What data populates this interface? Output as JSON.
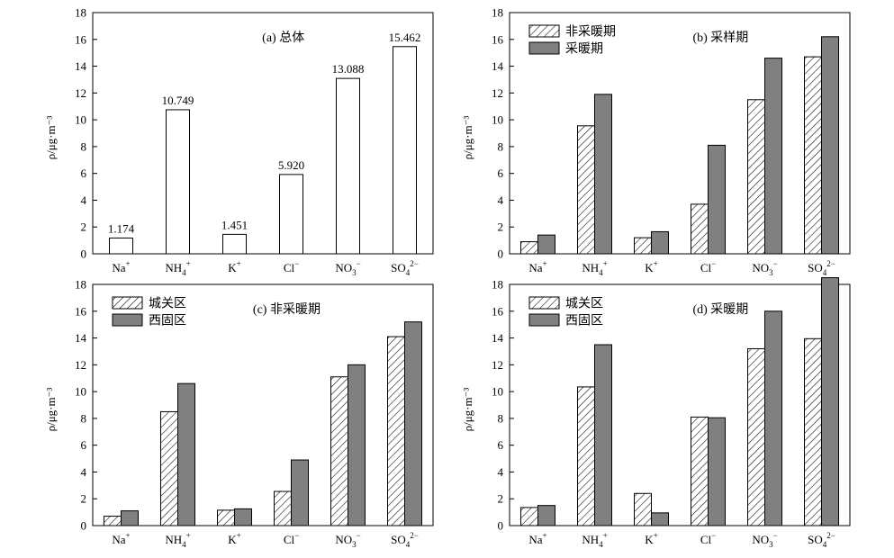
{
  "chart_data": [
    {
      "id": "a",
      "type": "bar",
      "title": "(a) 总体",
      "ylabel": "ρ/μg·m⁻³",
      "ylim": [
        0,
        18
      ],
      "yticks": [
        "0",
        "2",
        "4",
        "6",
        "8",
        "10",
        "12",
        "14",
        "16",
        "18"
      ],
      "categories": [
        {
          "base": "Na",
          "sub": "",
          "sup": "+"
        },
        {
          "base": "NH",
          "sub": "4",
          "sup": "+"
        },
        {
          "base": "K",
          "sub": "",
          "sup": "+"
        },
        {
          "base": "Cl",
          "sub": "",
          "sup": "−"
        },
        {
          "base": "NO",
          "sub": "3",
          "sup": "−"
        },
        {
          "base": "SO",
          "sub": "4",
          "sup": "2−"
        }
      ],
      "legend_position": "none",
      "series": [
        {
          "name": "",
          "style": "white",
          "values": [
            1.174,
            10.749,
            1.451,
            5.92,
            13.088,
            15.462
          ]
        }
      ],
      "data_labels": [
        "1.174",
        "10.749",
        "1.451",
        "5.920",
        "13.088",
        "15.462"
      ]
    },
    {
      "id": "b",
      "type": "bar",
      "title": "(b) 采样期",
      "ylabel": "ρ/μg·m⁻³",
      "ylim": [
        0,
        18
      ],
      "yticks": [
        "0",
        "2",
        "4",
        "6",
        "8",
        "10",
        "12",
        "14",
        "16",
        "18"
      ],
      "categories": [
        {
          "base": "Na",
          "sub": "",
          "sup": "+"
        },
        {
          "base": "NH",
          "sub": "4",
          "sup": "+"
        },
        {
          "base": "K",
          "sub": "",
          "sup": "+"
        },
        {
          "base": "Cl",
          "sub": "",
          "sup": "−"
        },
        {
          "base": "NO",
          "sub": "3",
          "sup": "−"
        },
        {
          "base": "SO",
          "sub": "4",
          "sup": "2−"
        }
      ],
      "legend_position": "top-left",
      "series": [
        {
          "name": "非采暖期",
          "style": "hatch",
          "values": [
            0.9,
            9.55,
            1.2,
            3.7,
            11.5,
            14.7
          ]
        },
        {
          "name": "采暖期",
          "style": "gray",
          "values": [
            1.4,
            11.9,
            1.65,
            8.1,
            14.6,
            16.2
          ]
        }
      ]
    },
    {
      "id": "c",
      "type": "bar",
      "title": "(c) 非采暖期",
      "ylabel": "ρ/μg·m⁻³",
      "ylim": [
        0,
        18
      ],
      "yticks": [
        "0",
        "2",
        "4",
        "6",
        "8",
        "10",
        "12",
        "14",
        "16",
        "18"
      ],
      "categories": [
        {
          "base": "Na",
          "sub": "",
          "sup": "+"
        },
        {
          "base": "NH",
          "sub": "4",
          "sup": "+"
        },
        {
          "base": "K",
          "sub": "",
          "sup": "+"
        },
        {
          "base": "Cl",
          "sub": "",
          "sup": "−"
        },
        {
          "base": "NO",
          "sub": "3",
          "sup": "−"
        },
        {
          "base": "SO",
          "sub": "4",
          "sup": "2−"
        }
      ],
      "legend_position": "top-left",
      "series": [
        {
          "name": "城关区",
          "style": "hatch",
          "values": [
            0.7,
            8.5,
            1.15,
            2.55,
            11.1,
            14.1
          ]
        },
        {
          "name": "西固区",
          "style": "gray",
          "values": [
            1.1,
            10.6,
            1.25,
            4.9,
            12.0,
            15.2
          ]
        }
      ]
    },
    {
      "id": "d",
      "type": "bar",
      "title": "(d) 采暖期",
      "ylabel": "ρ/μg·m⁻³",
      "ylim": [
        0,
        18
      ],
      "yticks": [
        "0",
        "2",
        "4",
        "6",
        "8",
        "10",
        "12",
        "14",
        "16",
        "18"
      ],
      "categories": [
        {
          "base": "Na",
          "sub": "",
          "sup": "+"
        },
        {
          "base": "NH",
          "sub": "4",
          "sup": "+"
        },
        {
          "base": "K",
          "sub": "",
          "sup": "+"
        },
        {
          "base": "Cl",
          "sub": "",
          "sup": "−"
        },
        {
          "base": "NO",
          "sub": "3",
          "sup": "−"
        },
        {
          "base": "SO",
          "sub": "4",
          "sup": "2−"
        }
      ],
      "legend_position": "top-left",
      "series": [
        {
          "name": "城关区",
          "style": "hatch",
          "values": [
            1.35,
            10.35,
            2.4,
            8.1,
            13.2,
            13.95
          ]
        },
        {
          "name": "西固区",
          "style": "gray",
          "values": [
            1.5,
            13.5,
            0.95,
            8.05,
            16.0,
            18.5
          ]
        }
      ]
    }
  ],
  "colors": {
    "gray_bar": "#808080",
    "white_bar": "#ffffff",
    "hatch_bar": "#ffffff",
    "stroke": "#000000"
  }
}
